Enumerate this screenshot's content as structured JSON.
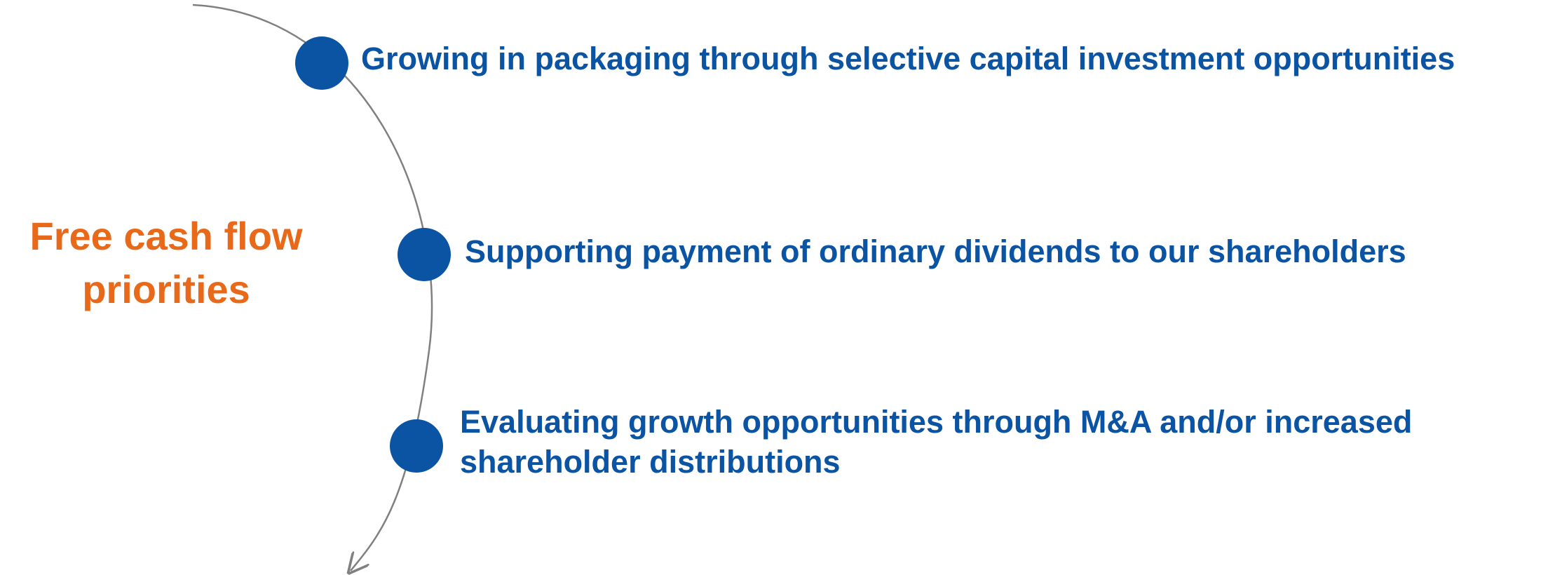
{
  "title": {
    "lines": [
      "Free cash flow",
      "priorities"
    ]
  },
  "items": [
    {
      "lines": [
        "Growing in packaging through selective capital investment opportunities"
      ]
    },
    {
      "lines": [
        "Supporting payment of ordinary dividends to our shareholders"
      ]
    },
    {
      "lines": [
        "Evaluating growth opportunities through M&A and/or increased",
        "shareholder distributions"
      ]
    }
  ]
}
